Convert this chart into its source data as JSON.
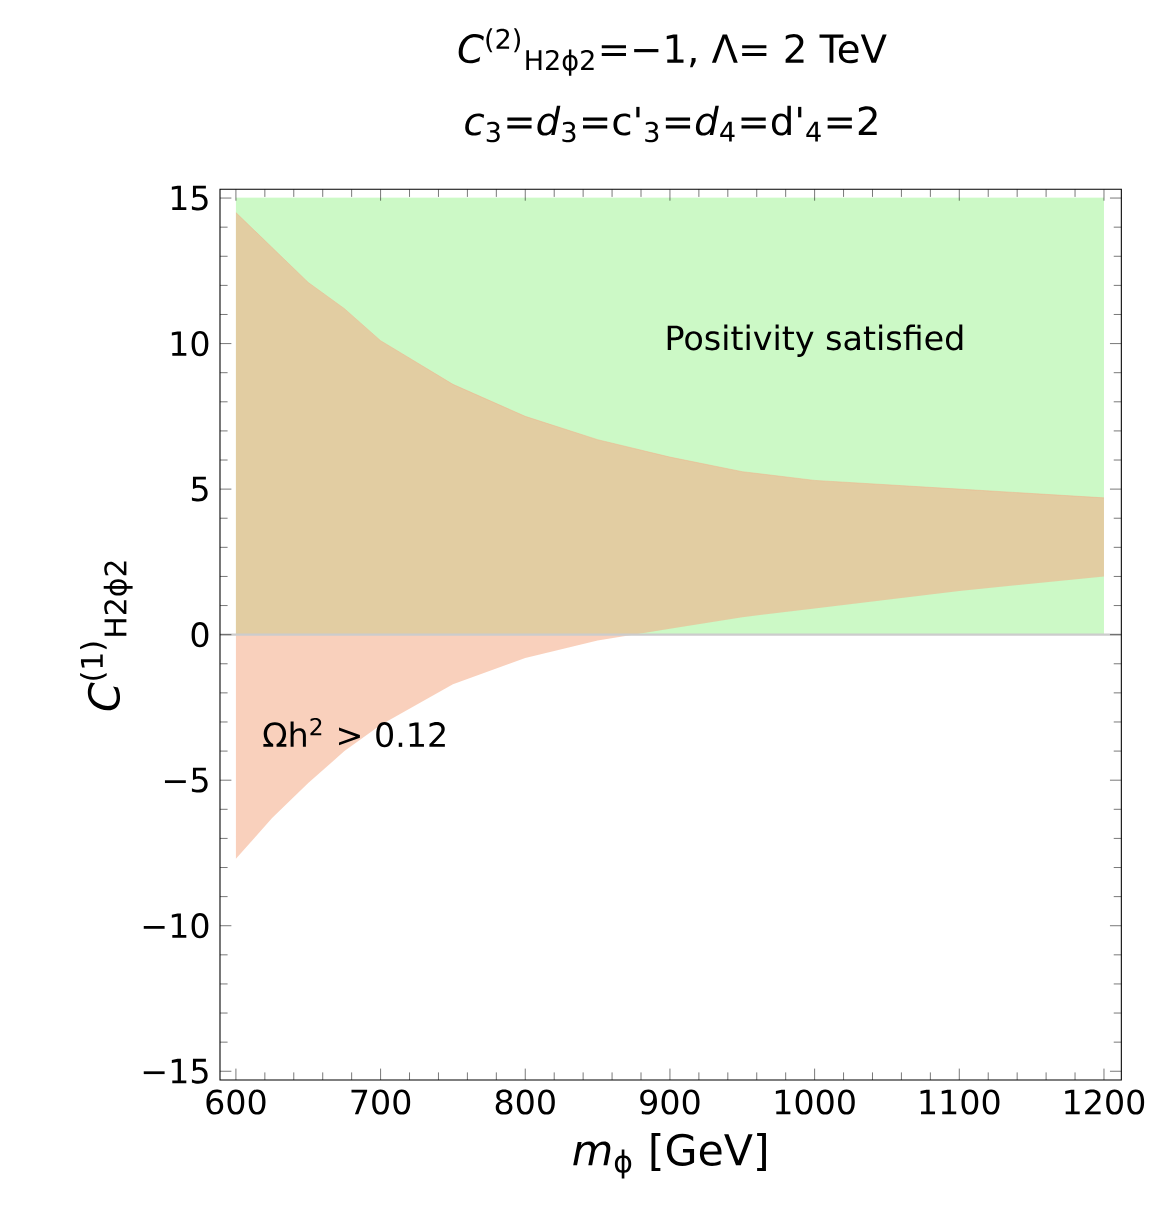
{
  "chart_data": {
    "type": "line",
    "title": "*C*$^{(2)}$$_{H2ϕ2}$=−1, Λ= 2 TeV",
    "subtitle": "*c*$_{3}$=*d*$_{3}$=c'$_{3}$=*d*$_{4}$=d'$_{4}$=2",
    "xlabel": "*m*$_{ϕ}$ [GeV]",
    "ylabel": "*C*$^{(1)}$$_{H2ϕ2}$",
    "xlim": [
      589,
      1212
    ],
    "ylim": [
      -15.3,
      15.3
    ],
    "xticks": [
      600,
      700,
      800,
      900,
      1000,
      1100,
      1200
    ],
    "yticks": [
      {
        "value": -15,
        "label": "−15"
      },
      {
        "value": -10,
        "label": "−10"
      },
      {
        "value": -5,
        "label": "−5"
      },
      0,
      5,
      10,
      15
    ],
    "annotations": [
      "Positivity satisfied",
      "Ωh$^{2}$ > 0.12"
    ],
    "ref_lines": [
      {
        "axis": "y",
        "value": 0,
        "color": "#cccccc"
      }
    ],
    "series": [
      {
        "color": "#ccf9c6",
        "x": [
          600,
          1200
        ],
        "values": [
          15,
          15
        ],
        "lower": [
          0,
          0
        ],
        "upper": [
          15,
          15
        ]
      },
      {
        "color": "#f4aa85",
        "x": [
          600,
          625,
          650,
          675,
          700,
          750,
          800,
          850,
          900,
          950,
          1000,
          1100,
          1200
        ],
        "values": [
          14.5,
          13.3,
          12.1,
          11.2,
          10.1,
          8.6,
          7.5,
          6.7,
          6.1,
          5.6,
          5.3,
          5.0,
          4.7
        ],
        "lower": [
          -7.7,
          -6.3,
          -5.1,
          -4.0,
          -3.1,
          -1.7,
          -0.8,
          -0.2,
          0.2,
          0.6,
          0.9,
          1.5,
          2.0
        ],
        "upper": [
          14.5,
          13.3,
          12.1,
          11.2,
          10.1,
          8.6,
          7.5,
          6.7,
          6.1,
          5.6,
          5.3,
          5.0,
          4.7
        ]
      }
    ]
  }
}
